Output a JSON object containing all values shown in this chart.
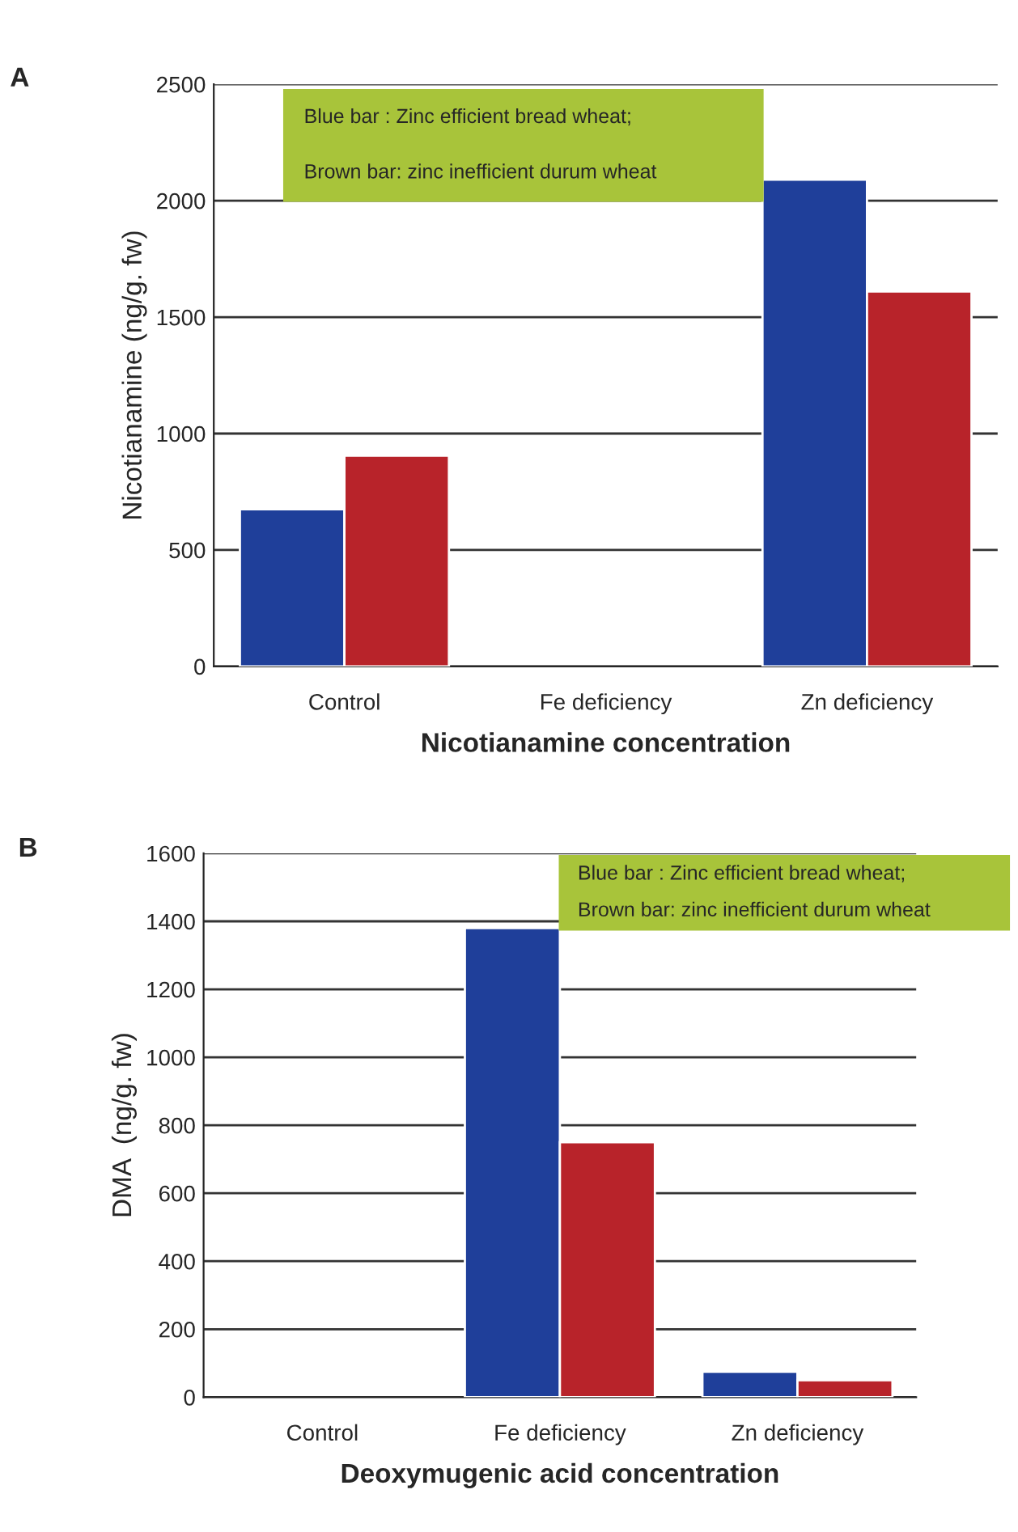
{
  "chart_data": [
    {
      "type": "bar",
      "xlabel": "Nicotianamine concentration",
      "ylabel": "Nicotianamine (ng/g. fw)",
      "categories": [
        "Control",
        "Fe deficiency",
        "Zn deficiency"
      ],
      "series": [
        {
          "color": "#1f3f9a",
          "values": [
            675,
            null,
            2090
          ]
        },
        {
          "color": "#b8232a",
          "values": [
            905,
            null,
            1610
          ]
        }
      ],
      "ylim": [
        0,
        2500
      ],
      "yticks": [
        0,
        500,
        1000,
        1500,
        2000,
        2500
      ],
      "grid": "y",
      "annotations": [
        "A",
        "Blue bar : Zinc efficient bread wheat;",
        "Brown bar: zinc inefficient durum wheat"
      ]
    },
    {
      "type": "bar",
      "xlabel": "Deoxymugenic acid concentration",
      "ylabel": "DMA  (ng/g. fw)",
      "categories": [
        "Control",
        "Fe deficiency",
        "Zn deficiency"
      ],
      "series": [
        {
          "color": "#1f3f9a",
          "values": [
            null,
            1380,
            75
          ]
        },
        {
          "color": "#b8232a",
          "values": [
            null,
            750,
            50
          ]
        }
      ],
      "ylim": [
        0,
        1600
      ],
      "yticks": [
        0,
        200,
        400,
        600,
        800,
        1000,
        1200,
        1400,
        1600
      ],
      "grid": "y",
      "annotations": [
        "B",
        "Blue bar : Zinc efficient bread wheat;",
        "Brown bar: zinc inefficient durum wheat"
      ]
    }
  ]
}
